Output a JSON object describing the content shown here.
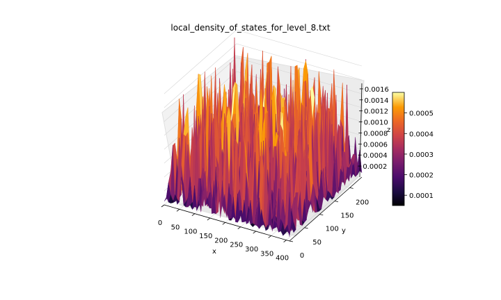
{
  "chart_data": {
    "type": "surface3d",
    "title": "local_density_of_states_for_level_8.txt",
    "xlabel": "x",
    "ylabel": "y",
    "zlabel": "z",
    "xlim": [
      0,
      410
    ],
    "ylim": [
      0,
      240
    ],
    "zlim": [
      0,
      0.0017
    ],
    "x_ticks": [
      "0",
      "50",
      "100",
      "150",
      "200",
      "250",
      "300",
      "350",
      "400"
    ],
    "y_ticks": [
      "0",
      "50",
      "100",
      "150",
      "200"
    ],
    "z_ticks": [
      "0.0002",
      "0.0004",
      "0.0006",
      "0.0008",
      "0.0010",
      "0.0012",
      "0.0014",
      "0.0016"
    ],
    "colormap": "inferno",
    "colorbar": {
      "ticks": [
        "0.0001",
        "0.0002",
        "0.0003",
        "0.0004",
        "0.0005"
      ],
      "range": [
        5e-05,
        0.0006
      ]
    },
    "grid": true
  }
}
